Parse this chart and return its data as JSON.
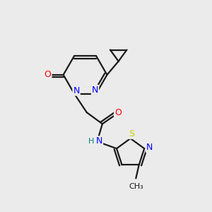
{
  "background_color": "#ebebeb",
  "bond_color": "#1a1a1a",
  "atom_colors": {
    "N": "#0000ff",
    "O": "#ff0000",
    "S": "#cccc00",
    "C": "#1a1a1a",
    "H": "#008080"
  }
}
